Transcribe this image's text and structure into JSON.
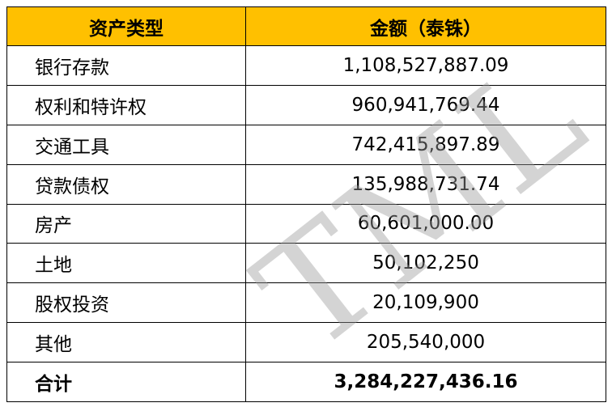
{
  "watermark": {
    "text": "TML",
    "color": "#9b9b9b"
  },
  "colors": {
    "header_bg": "#FFC000",
    "border": "#000000",
    "text": "#000000"
  },
  "chart_data": {
    "type": "table",
    "title": "",
    "columns": [
      "资产类型",
      "金额（泰铢）"
    ],
    "rows": [
      {
        "label": "银行存款",
        "value": "1,108,527,887.09"
      },
      {
        "label": "权利和特许权",
        "value": "960,941,769.44"
      },
      {
        "label": "交通工具",
        "value": "742,415,897.89"
      },
      {
        "label": "贷款债权",
        "value": "135,988,731.74"
      },
      {
        "label": "房产",
        "value": "60,601,000.00"
      },
      {
        "label": "土地",
        "value": "50,102,250"
      },
      {
        "label": "股权投资",
        "value": "20,109,900"
      },
      {
        "label": "其他",
        "value": "205,540,000"
      }
    ],
    "total_row": {
      "label": "合计",
      "value": "3,284,227,436.16"
    }
  }
}
